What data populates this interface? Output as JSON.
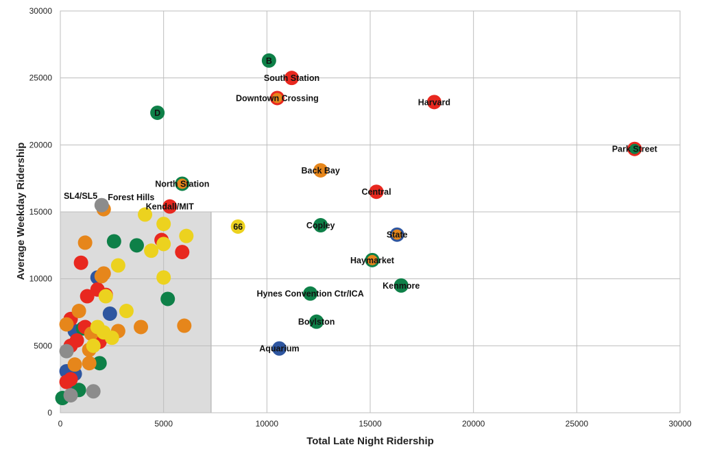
{
  "chart_data": {
    "type": "scatter",
    "xlabel": "Total Late Night Ridership",
    "ylabel": "Average Weekday Ridership",
    "xlim": [
      0,
      30000
    ],
    "ylim": [
      0,
      30000
    ],
    "xticks": [
      0,
      5000,
      10000,
      15000,
      20000,
      25000,
      30000
    ],
    "yticks": [
      0,
      5000,
      10000,
      15000,
      20000,
      25000,
      30000
    ],
    "grid": true,
    "colors": {
      "green": "#0e8048",
      "red": "#e8281f",
      "orange": "#e6861b",
      "yellow": "#ecd21f",
      "blue": "#2e56a0",
      "gray": "#8c8c8c",
      "highlight_box": "#dcdcdc"
    },
    "highlight_region": {
      "x": [
        0,
        7300
      ],
      "y": [
        0,
        15000
      ]
    },
    "labeled_points": [
      {
        "label": "B",
        "x": 10100,
        "y": 26300,
        "fill": "green",
        "label_pos": "center"
      },
      {
        "label": "South Station",
        "x": 11200,
        "y": 25000,
        "fill": "red",
        "label_pos": "center"
      },
      {
        "label": "Downtown Crossing",
        "x": 10500,
        "y": 23500,
        "fill": "orange",
        "ring": "red",
        "label_pos": "center"
      },
      {
        "label": "D",
        "x": 4700,
        "y": 22400,
        "fill": "green",
        "label_pos": "center"
      },
      {
        "label": "Harvard",
        "x": 18100,
        "y": 23200,
        "fill": "red",
        "label_pos": "center"
      },
      {
        "label": "Park Street",
        "x": 27800,
        "y": 19700,
        "fill": "green",
        "ring": "red",
        "label_pos": "center"
      },
      {
        "label": "Back Bay",
        "x": 12600,
        "y": 18100,
        "fill": "orange",
        "label_pos": "center"
      },
      {
        "label": "North Station",
        "x": 5900,
        "y": 17100,
        "fill": "orange",
        "ring": "green",
        "label_pos": "center"
      },
      {
        "label": "Central",
        "x": 15300,
        "y": 16500,
        "fill": "red",
        "label_pos": "center"
      },
      {
        "label": "Kendall/MIT",
        "x": 5300,
        "y": 15400,
        "fill": "red",
        "label_pos": "center"
      },
      {
        "label": "Forest Hills",
        "x": 2100,
        "y": 15200,
        "fill": "orange",
        "label_pos": "upper-right"
      },
      {
        "label": "SL4/SL5",
        "x": 2000,
        "y": 15500,
        "fill": "gray",
        "label_pos": "upper-left"
      },
      {
        "label": "66",
        "x": 8600,
        "y": 13900,
        "fill": "yellow",
        "label_pos": "center"
      },
      {
        "label": "Copley",
        "x": 12600,
        "y": 14000,
        "fill": "green",
        "label_pos": "center"
      },
      {
        "label": "State",
        "x": 16300,
        "y": 13300,
        "fill": "orange",
        "ring": "blue",
        "label_pos": "center"
      },
      {
        "label": "Haymarket",
        "x": 15100,
        "y": 11400,
        "fill": "orange",
        "ring": "green",
        "label_pos": "center"
      },
      {
        "label": "Kenmore",
        "x": 16500,
        "y": 9500,
        "fill": "green",
        "label_pos": "center"
      },
      {
        "label": "Hynes Convention Ctr/ICA",
        "x": 12100,
        "y": 8900,
        "fill": "green",
        "label_pos": "center"
      },
      {
        "label": "Boylston",
        "x": 12400,
        "y": 6800,
        "fill": "green",
        "label_pos": "center"
      },
      {
        "label": "Aquarium",
        "x": 10600,
        "y": 4800,
        "fill": "blue",
        "label_pos": "center"
      }
    ],
    "points": [
      {
        "x": 1800,
        "y": 10100,
        "fill": "blue"
      },
      {
        "x": 2400,
        "y": 7400,
        "fill": "blue"
      },
      {
        "x": 700,
        "y": 6100,
        "fill": "blue"
      },
      {
        "x": 300,
        "y": 3100,
        "fill": "blue"
      },
      {
        "x": 700,
        "y": 2900,
        "fill": "blue"
      },
      {
        "x": 400,
        "y": 2300,
        "fill": "blue"
      },
      {
        "x": 2600,
        "y": 12800,
        "fill": "green"
      },
      {
        "x": 3700,
        "y": 12500,
        "fill": "green"
      },
      {
        "x": 5200,
        "y": 8500,
        "fill": "green"
      },
      {
        "x": 1900,
        "y": 3700,
        "fill": "green"
      },
      {
        "x": 900,
        "y": 1700,
        "fill": "green"
      },
      {
        "x": 100,
        "y": 1100,
        "fill": "green"
      },
      {
        "x": 1100,
        "y": 6300,
        "fill": "green"
      },
      {
        "x": 4900,
        "y": 12900,
        "fill": "red"
      },
      {
        "x": 5900,
        "y": 12000,
        "fill": "red"
      },
      {
        "x": 1000,
        "y": 11200,
        "fill": "red"
      },
      {
        "x": 1300,
        "y": 8700,
        "fill": "red"
      },
      {
        "x": 1800,
        "y": 9200,
        "fill": "red"
      },
      {
        "x": 2200,
        "y": 8800,
        "fill": "red"
      },
      {
        "x": 1200,
        "y": 6400,
        "fill": "red"
      },
      {
        "x": 500,
        "y": 7000,
        "fill": "red"
      },
      {
        "x": 800,
        "y": 5400,
        "fill": "red"
      },
      {
        "x": 500,
        "y": 5000,
        "fill": "red"
      },
      {
        "x": 1900,
        "y": 5300,
        "fill": "red"
      },
      {
        "x": 500,
        "y": 2500,
        "fill": "red"
      },
      {
        "x": 300,
        "y": 2300,
        "fill": "red"
      },
      {
        "x": 1200,
        "y": 12700,
        "fill": "orange"
      },
      {
        "x": 2100,
        "y": 10400,
        "fill": "orange"
      },
      {
        "x": 2000,
        "y": 10200,
        "fill": "orange"
      },
      {
        "x": 900,
        "y": 7600,
        "fill": "orange"
      },
      {
        "x": 300,
        "y": 6600,
        "fill": "orange"
      },
      {
        "x": 1500,
        "y": 5900,
        "fill": "orange"
      },
      {
        "x": 1400,
        "y": 4700,
        "fill": "orange"
      },
      {
        "x": 700,
        "y": 3600,
        "fill": "orange"
      },
      {
        "x": 1400,
        "y": 3700,
        "fill": "orange"
      },
      {
        "x": 2800,
        "y": 6100,
        "fill": "orange"
      },
      {
        "x": 3900,
        "y": 6400,
        "fill": "orange"
      },
      {
        "x": 6000,
        "y": 6500,
        "fill": "orange"
      },
      {
        "x": 4100,
        "y": 14800,
        "fill": "yellow"
      },
      {
        "x": 5000,
        "y": 14100,
        "fill": "yellow"
      },
      {
        "x": 6100,
        "y": 13200,
        "fill": "yellow"
      },
      {
        "x": 5000,
        "y": 12600,
        "fill": "yellow"
      },
      {
        "x": 4400,
        "y": 12100,
        "fill": "yellow"
      },
      {
        "x": 2800,
        "y": 11000,
        "fill": "yellow"
      },
      {
        "x": 5000,
        "y": 10100,
        "fill": "yellow"
      },
      {
        "x": 2200,
        "y": 8700,
        "fill": "yellow"
      },
      {
        "x": 3200,
        "y": 7600,
        "fill": "yellow"
      },
      {
        "x": 1800,
        "y": 6400,
        "fill": "yellow"
      },
      {
        "x": 2100,
        "y": 6000,
        "fill": "yellow"
      },
      {
        "x": 2500,
        "y": 5600,
        "fill": "yellow"
      },
      {
        "x": 1600,
        "y": 5000,
        "fill": "yellow"
      },
      {
        "x": 1600,
        "y": 1600,
        "fill": "gray"
      },
      {
        "x": 300,
        "y": 4600,
        "fill": "gray"
      },
      {
        "x": 500,
        "y": 1300,
        "fill": "gray"
      }
    ]
  }
}
